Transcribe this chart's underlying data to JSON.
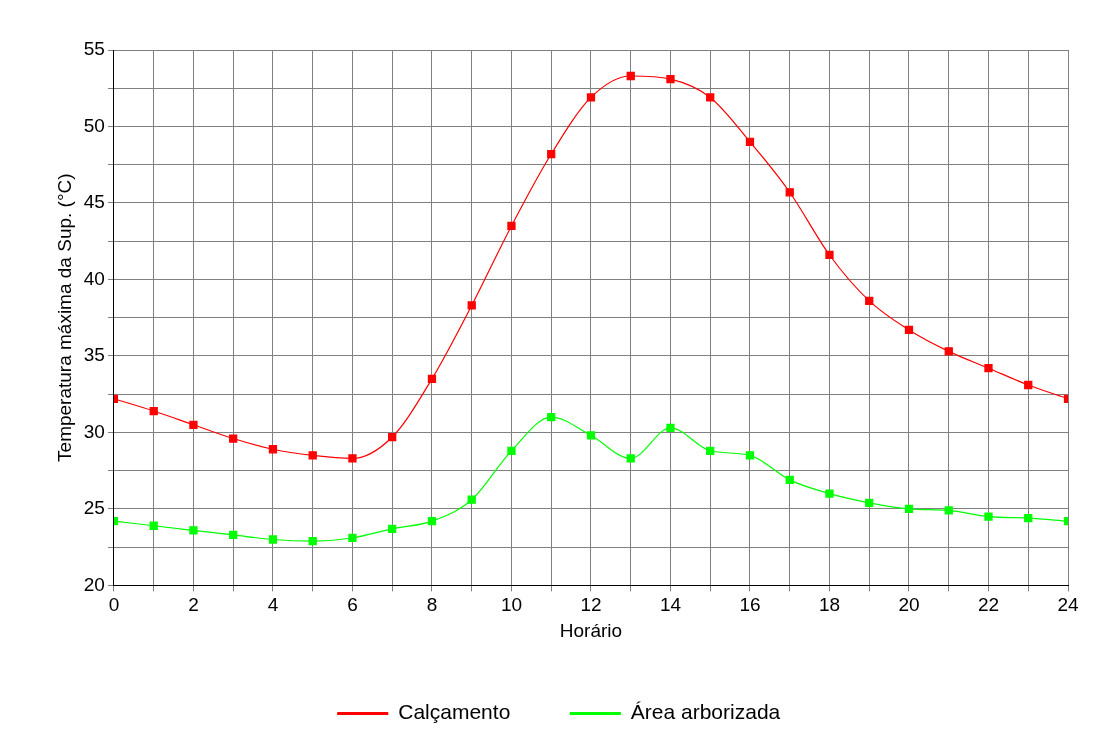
{
  "chart_data": {
    "type": "line",
    "xlabel": "Horário",
    "ylabel": "Temperatura máxima da Sup. (°C)",
    "x": [
      0,
      1,
      2,
      3,
      4,
      5,
      6,
      7,
      8,
      9,
      10,
      11,
      12,
      13,
      14,
      15,
      16,
      17,
      18,
      19,
      20,
      21,
      22,
      23,
      24
    ],
    "series": [
      {
        "name": "Calçamento",
        "color": "#ff0000",
        "values": [
          32.2,
          31.4,
          30.5,
          29.6,
          28.9,
          28.5,
          28.3,
          29.7,
          33.5,
          38.3,
          43.5,
          48.2,
          51.9,
          53.3,
          53.1,
          51.9,
          49.0,
          45.7,
          41.6,
          38.6,
          36.7,
          35.3,
          34.2,
          33.1,
          32.2
        ]
      },
      {
        "name": "Área arborizada",
        "color": "#00ff00",
        "values": [
          24.2,
          23.9,
          23.6,
          23.3,
          23.0,
          22.9,
          23.1,
          23.7,
          24.2,
          25.6,
          28.8,
          31.0,
          29.8,
          28.3,
          30.3,
          28.8,
          28.5,
          26.9,
          26.0,
          25.4,
          25.0,
          24.9,
          24.5,
          24.4,
          24.2
        ]
      }
    ],
    "xlim": [
      0,
      24
    ],
    "xticks": [
      0,
      {
        "value": 1,
        "label": null
      },
      2,
      {
        "value": 3,
        "label": null
      },
      4,
      {
        "value": 5,
        "label": null
      },
      6,
      {
        "value": 7,
        "label": null
      },
      8,
      {
        "value": 9,
        "label": null
      },
      10,
      {
        "value": 11,
        "label": null
      },
      12,
      {
        "value": 13,
        "label": null
      },
      14,
      {
        "value": 15,
        "label": null
      },
      16,
      {
        "value": 17,
        "label": null
      },
      18,
      {
        "value": 19,
        "label": null
      },
      20,
      {
        "value": 21,
        "label": null
      },
      22,
      {
        "value": 23,
        "label": null
      },
      24
    ],
    "ylim": [
      20,
      55
    ],
    "yticks": [
      20,
      {
        "value": 22.5,
        "label": null
      },
      25,
      {
        "value": 27.5,
        "label": null
      },
      30,
      {
        "value": 32.5,
        "label": null
      },
      35,
      {
        "value": 37.5,
        "label": null
      },
      40,
      {
        "value": 42.5,
        "label": null
      },
      45,
      {
        "value": 47.5,
        "label": null
      },
      50,
      {
        "value": 52.5,
        "label": null
      },
      55
    ],
    "grid": true,
    "legend": "bottom",
    "marker": "square",
    "line_style": "solid"
  }
}
